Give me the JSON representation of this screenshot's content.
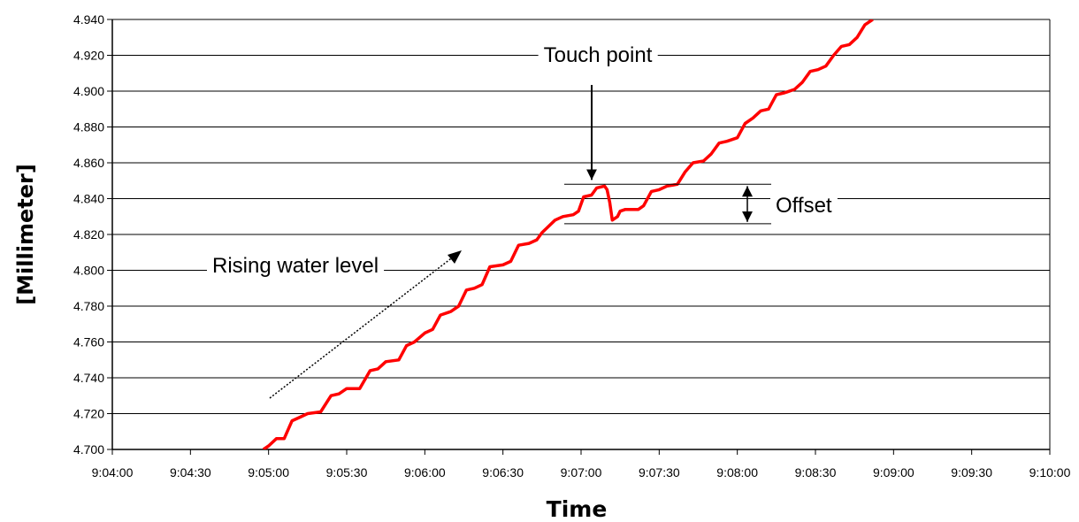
{
  "chart_data": {
    "type": "line",
    "title": "",
    "xlabel": "Time",
    "ylabel": "[Millimeter]",
    "xlim": [
      "9:04:00",
      "9:10:00"
    ],
    "ylim": [
      4.7,
      4.94
    ],
    "grid": "horizontal",
    "legend": "none",
    "y_ticks": [
      "4.700",
      "4.720",
      "4.740",
      "4.760",
      "4.780",
      "4.800",
      "4.820",
      "4.840",
      "4.860",
      "4.880",
      "4.900",
      "4.920",
      "4.940"
    ],
    "x_ticks": [
      "9:04:00",
      "9:04:30",
      "9:05:00",
      "9:05:30",
      "9:06:00",
      "9:06:30",
      "9:07:00",
      "9:07:30",
      "9:08:00",
      "9:08:30",
      "9:09:00",
      "9:09:30",
      "9:10:00"
    ],
    "series": [
      {
        "color": "#ff0000",
        "points": [
          [
            "9:04:58",
            4.7
          ],
          [
            "9:05:00",
            4.702
          ],
          [
            "9:05:03",
            4.706
          ],
          [
            "9:05:06",
            4.706
          ],
          [
            "9:05:09",
            4.716
          ],
          [
            "9:05:12",
            4.718
          ],
          [
            "9:05:15",
            4.72
          ],
          [
            "9:05:20",
            4.721
          ],
          [
            "9:05:24",
            4.73
          ],
          [
            "9:05:27",
            4.731
          ],
          [
            "9:05:30",
            4.734
          ],
          [
            "9:05:35",
            4.734
          ],
          [
            "9:05:39",
            4.744
          ],
          [
            "9:05:42",
            4.745
          ],
          [
            "9:05:45",
            4.749
          ],
          [
            "9:05:50",
            4.75
          ],
          [
            "9:05:53",
            4.758
          ],
          [
            "9:05:56",
            4.76
          ],
          [
            "9:06:00",
            4.765
          ],
          [
            "9:06:03",
            4.767
          ],
          [
            "9:06:06",
            4.775
          ],
          [
            "9:06:10",
            4.777
          ],
          [
            "9:06:13",
            4.78
          ],
          [
            "9:06:16",
            4.789
          ],
          [
            "9:06:19",
            4.79
          ],
          [
            "9:06:22",
            4.792
          ],
          [
            "9:06:25",
            4.802
          ],
          [
            "9:06:30",
            4.803
          ],
          [
            "9:06:33",
            4.805
          ],
          [
            "9:06:36",
            4.814
          ],
          [
            "9:06:40",
            4.815
          ],
          [
            "9:06:43",
            4.817
          ],
          [
            "9:06:45",
            4.821
          ],
          [
            "9:06:50",
            4.828
          ],
          [
            "9:06:53",
            4.83
          ],
          [
            "9:06:57",
            4.831
          ],
          [
            "9:06:59",
            4.833
          ],
          [
            "9:07:01",
            4.841
          ],
          [
            "9:07:04",
            4.842
          ],
          [
            "9:07:06",
            4.846
          ],
          [
            "9:07:09",
            4.847
          ],
          [
            "9:07:10",
            4.845
          ],
          [
            "9:07:11",
            4.838
          ],
          [
            "9:07:12",
            4.828
          ],
          [
            "9:07:14",
            4.83
          ],
          [
            "9:07:15",
            4.833
          ],
          [
            "9:07:17",
            4.834
          ],
          [
            "9:07:22",
            4.834
          ],
          [
            "9:07:24",
            4.836
          ],
          [
            "9:07:27",
            4.844
          ],
          [
            "9:07:30",
            4.845
          ],
          [
            "9:07:33",
            4.847
          ],
          [
            "9:07:37",
            4.848
          ],
          [
            "9:07:40",
            4.855
          ],
          [
            "9:07:43",
            4.86
          ],
          [
            "9:07:47",
            4.861
          ],
          [
            "9:07:50",
            4.865
          ],
          [
            "9:07:53",
            4.871
          ],
          [
            "9:07:56",
            4.872
          ],
          [
            "9:08:00",
            4.874
          ],
          [
            "9:08:03",
            4.882
          ],
          [
            "9:08:06",
            4.885
          ],
          [
            "9:08:09",
            4.889
          ],
          [
            "9:08:12",
            4.89
          ],
          [
            "9:08:15",
            4.898
          ],
          [
            "9:08:18",
            4.899
          ],
          [
            "9:08:22",
            4.901
          ],
          [
            "9:08:25",
            4.905
          ],
          [
            "9:08:28",
            4.911
          ],
          [
            "9:08:31",
            4.912
          ],
          [
            "9:08:34",
            4.914
          ],
          [
            "9:08:37",
            4.92
          ],
          [
            "9:08:40",
            4.925
          ],
          [
            "9:08:43",
            4.926
          ],
          [
            "9:08:46",
            4.93
          ],
          [
            "9:08:49",
            4.937
          ],
          [
            "9:08:52",
            4.94
          ]
        ]
      }
    ],
    "annotations": {
      "touch_point": "Touch point",
      "offset": "Offset",
      "rising": "Rising water level",
      "offset_upper_mm": 4.848,
      "offset_lower_mm": 4.826
    }
  }
}
